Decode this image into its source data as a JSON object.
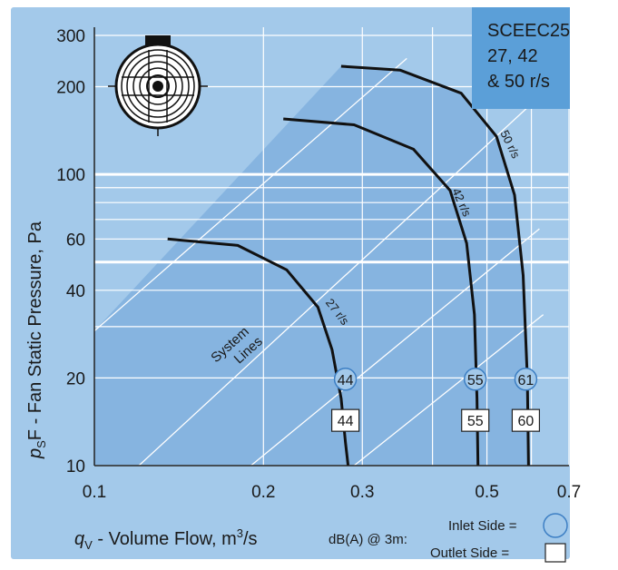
{
  "colors": {
    "background_panel": "#a3c9ea",
    "operating_region": "#86b4e0",
    "title_box": "#5b9fd8",
    "curve": "#111111",
    "grid": "#ffffff",
    "inlet_badge_fill": "#a3c9ea",
    "outlet_badge_fill": "#ffffff"
  },
  "title_box": {
    "line1": "SCEEC25",
    "line2": "27, 42",
    "line3": "& 50 r/s"
  },
  "axes": {
    "y_title": "pSF - Fan Static Pressure, Pa",
    "y_title_main": "F - Fan Static Pressure, Pa",
    "y_title_p": "p",
    "y_title_sub": "S",
    "x_title_q": "q",
    "x_title_sub": "V",
    "x_title_main": " - Volume Flow, m",
    "x_title_sup": "3",
    "x_title_end": "/s",
    "x_tick_labels": [
      "0.1",
      "0.2",
      "0.3",
      "0.5",
      "0.7"
    ],
    "y_tick_labels": [
      "10",
      "20",
      "40",
      "60",
      "100",
      "200",
      "300"
    ]
  },
  "legend": {
    "dba_label": "dB(A) @ 3m:",
    "inlet_label": "Inlet Side =",
    "outlet_label": "Outlet  Side ="
  },
  "system_lines_label": {
    "line1": "System",
    "line2": "Lines"
  },
  "chart_data": {
    "type": "line",
    "title": "SCEEC25 27, 42 & 50 r/s",
    "xlabel": "qV - Volume Flow, m3/s",
    "ylabel": "pSF - Fan Static Pressure, Pa",
    "x_scale": "log",
    "y_scale": "log",
    "xlim": [
      0.1,
      0.7
    ],
    "ylim": [
      10,
      320
    ],
    "x_ticks": [
      0.1,
      0.2,
      0.3,
      0.5,
      0.7
    ],
    "y_ticks": [
      10,
      20,
      40,
      60,
      100,
      200,
      300
    ],
    "series": [
      {
        "name": "27 r/s",
        "x": [
          0.135,
          0.18,
          0.22,
          0.25,
          0.265,
          0.275,
          0.28,
          0.283
        ],
        "y": [
          60,
          57,
          47,
          35,
          25,
          17,
          12,
          10
        ],
        "inlet_dba": "44",
        "outlet_dba": "44"
      },
      {
        "name": "42 r/s",
        "x": [
          0.217,
          0.29,
          0.37,
          0.43,
          0.46,
          0.475,
          0.48,
          0.482
        ],
        "y": [
          155,
          148,
          122,
          88,
          58,
          33,
          17,
          10
        ],
        "inlet_dba": "55",
        "outlet_dba": "55"
      },
      {
        "name": "50 r/s",
        "x": [
          0.275,
          0.35,
          0.45,
          0.52,
          0.56,
          0.58,
          0.59,
          0.593
        ],
        "y": [
          235,
          228,
          190,
          135,
          85,
          45,
          20,
          10
        ],
        "inlet_dba": "61",
        "outlet_dba": "60"
      }
    ],
    "system_lines": [
      {
        "x": [
          0.1,
          0.36
        ],
        "y": [
          29,
          250
        ]
      },
      {
        "x": [
          0.12,
          0.62
        ],
        "y": [
          10,
          185
        ]
      },
      {
        "x": [
          0.19,
          0.62
        ],
        "y": [
          10,
          65
        ]
      },
      {
        "x": [
          0.29,
          0.63
        ],
        "y": [
          10,
          33
        ]
      }
    ],
    "grid": true,
    "legend_position": "bottom-right"
  }
}
